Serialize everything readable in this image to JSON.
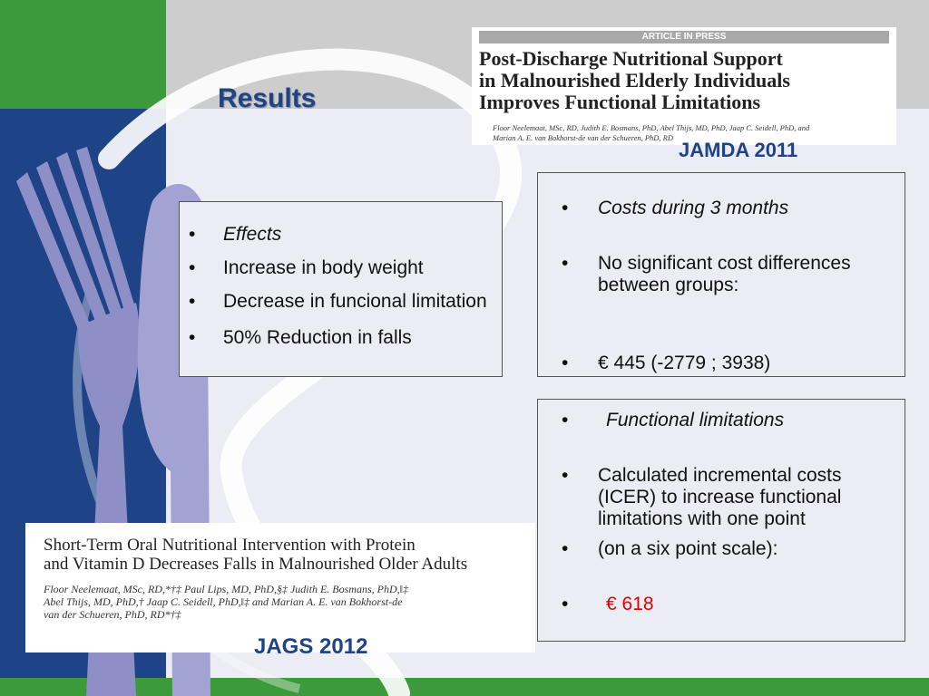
{
  "slide": {
    "title": "Results",
    "colors": {
      "navy": "#1e4487",
      "green": "#3c9a3a",
      "red": "#e00000"
    }
  },
  "article_top": {
    "banner": "ARTICLE IN PRESS",
    "title": "Post-Discharge Nutritional Support\nin Malnourished Elderly Individuals\nImproves Functional Limitations",
    "authors": "Floor Neelemaat, MSc, RD, Judith E. Bosmans, PhD, Abel Thijs, MD, PhD, Jaap C. Seidell, PhD, and\nMarian A. E. van Bokhorst-de van der Schueren, PhD, RD",
    "journal": "JAMDA 2011"
  },
  "effects_box": {
    "items": [
      {
        "text": "Effects",
        "style": "italic"
      },
      {
        "text": "Increase in body weight"
      },
      {
        "text": "Decrease in funcional limitation"
      },
      {
        "text": "50% Reduction in falls"
      }
    ]
  },
  "costs_box": {
    "items": [
      {
        "text": "Costs during 3 months",
        "style": "italic"
      },
      {
        "text": "No significant cost differences between groups:"
      },
      {
        "text": "€ 445 (-2779 ; 3938)"
      }
    ]
  },
  "functional_box": {
    "items": [
      {
        "text": "Functional limitations",
        "style": "italic"
      },
      {
        "text": "Calculated incremental costs (ICER) to increase functional limitations with one point"
      },
      {
        "text": "(on a six point scale):"
      },
      {
        "text": "€ 618",
        "style": "red"
      }
    ]
  },
  "article_bottom": {
    "title": "Short-Term Oral Nutritional Intervention with Protein\nand Vitamin D Decreases Falls in Malnourished Older Adults",
    "authors": "Floor Neelemaat, MSc, RD,*†‡ Paul Lips, MD, PhD,§‡ Judith E. Bosmans, PhD,‖‡\nAbel Thijs, MD, PhD,† Jaap C. Seidell, PhD,‖‡ and Marian A. E. van Bokhorst-de\nvan der Schueren, PhD, RD*†‡",
    "journal": "JAGS 2012"
  },
  "icons": [
    "fork-icon",
    "knife-icon",
    "swoosh-decoration",
    "bullet-icon"
  ]
}
